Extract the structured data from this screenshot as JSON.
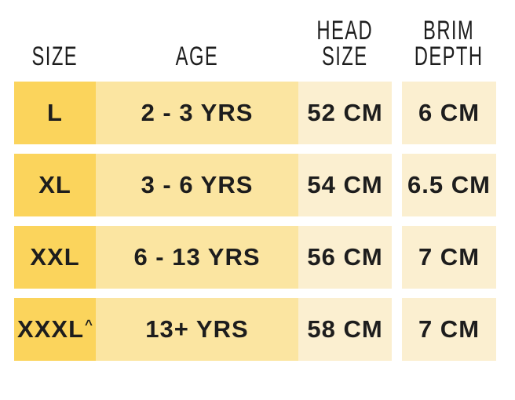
{
  "chart_data": {
    "type": "table",
    "columns": [
      "SIZE",
      "AGE",
      "HEAD SIZE",
      "BRIM DEPTH"
    ],
    "rows": [
      [
        "L",
        "2 - 3 YRS",
        "52 CM",
        "6 CM"
      ],
      [
        "XL",
        "3 - 6 YRS",
        "54 CM",
        "6.5 CM"
      ],
      [
        "XXL",
        "6 - 13 YRS",
        "56 CM",
        "7 CM"
      ],
      [
        "XXXL^",
        "13+ YRS",
        "58 CM",
        "7 CM"
      ]
    ]
  },
  "table": {
    "columns": [
      {
        "id": "size",
        "label_lines": [
          "SIZE"
        ]
      },
      {
        "id": "age",
        "label_lines": [
          "AGE"
        ]
      },
      {
        "id": "head",
        "label_lines": [
          "HEAD",
          "SIZE"
        ]
      },
      {
        "id": "brim",
        "label_lines": [
          "BRIM",
          "DEPTH"
        ]
      }
    ],
    "rows": [
      {
        "size": "L",
        "size_sup": "",
        "age": "2 - 3 YRS",
        "head": "52 CM",
        "brim": "6 CM"
      },
      {
        "size": "XL",
        "size_sup": "",
        "age": "3 - 6 YRS",
        "head": "54 CM",
        "brim": "6.5 CM"
      },
      {
        "size": "XXL",
        "size_sup": "",
        "age": "6 - 13 YRS",
        "head": "56 CM",
        "brim": "7 CM"
      },
      {
        "size": "XXXL",
        "size_sup": "^",
        "age": "13+ YRS",
        "head": "58 CM",
        "brim": "7 CM"
      }
    ],
    "colors": {
      "size_column_bg": "#FBD45C",
      "age_column_bg": "#FBE5A1",
      "measure_column_bg": "#FBEFD0",
      "text": "#1D1D1D",
      "background": "#FFFFFF"
    }
  }
}
